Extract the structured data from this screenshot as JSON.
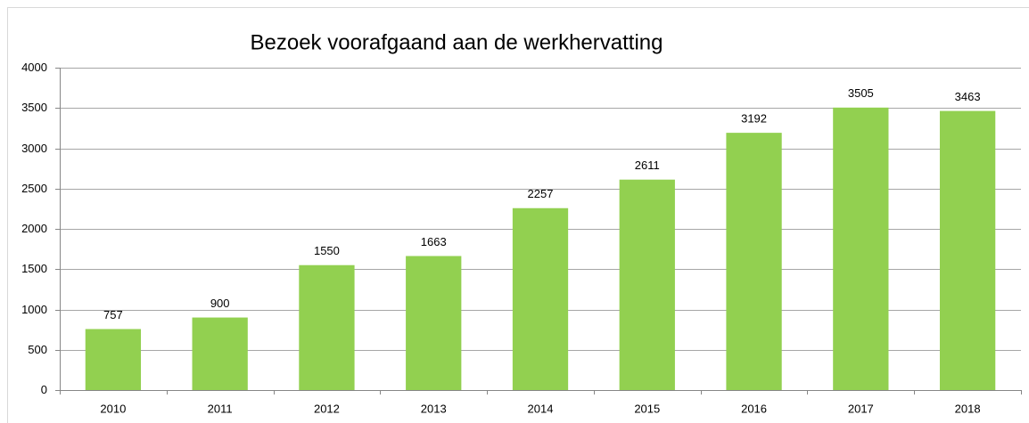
{
  "chart_data": {
    "type": "bar",
    "title": "Bezoek voorafgaand aan de werkhervatting",
    "categories": [
      "2010",
      "2011",
      "2012",
      "2013",
      "2014",
      "2015",
      "2016",
      "2017",
      "2018"
    ],
    "values": [
      757,
      900,
      1550,
      1663,
      2257,
      2611,
      3192,
      3505,
      3463
    ],
    "color": "#92d050",
    "ylim": [
      0,
      4000
    ],
    "yticks": [
      0,
      500,
      1000,
      1500,
      2000,
      2500,
      3000,
      3500,
      4000
    ],
    "grid": true,
    "data_labels": true
  }
}
